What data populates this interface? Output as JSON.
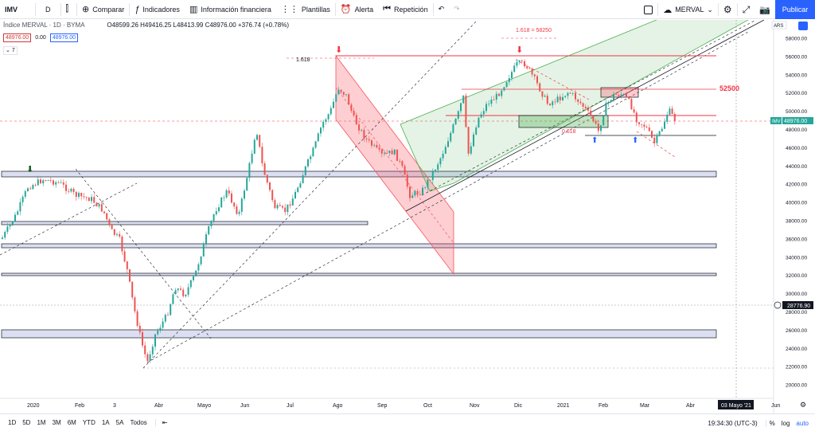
{
  "toolbar": {
    "symbol": "IMV",
    "interval": "D",
    "compare": "Comparar",
    "indicators": "Indicadores",
    "financials": "Información financiera",
    "templates": "Plantillas",
    "alert": "Alerta",
    "replay": "Repetición",
    "layout_name": "MERVAL",
    "publish": "Publicar"
  },
  "legend": {
    "name": "Índice MERVAL · 1D · BYMA",
    "ohlc": "O48599.26 H49416.25 L48413.99 C48976.00 +376.74 (+0.78%)",
    "bid": "48976.00",
    "spread": "0.00",
    "ask": "48976.00",
    "indicators_count": "7"
  },
  "price_axis": {
    "currency": "ARS",
    "labels": [
      "58000.00",
      "56000.00",
      "54000.00",
      "52000.00",
      "50000.00",
      "48000.00",
      "46000.00",
      "44000.00",
      "42000.00",
      "40000.00",
      "38000.00",
      "36000.00",
      "34000.00",
      "32000.00",
      "30000.00",
      "28000.00",
      "26000.00",
      "24000.00",
      "22000.00",
      "20000.00"
    ],
    "last_symbol": "IMV",
    "last_price": "48976.00",
    "crosshair_price": "28776.90"
  },
  "time_axis": {
    "labels": [
      "2020",
      "Feb",
      "3",
      "Abr",
      "Mayo",
      "Jun",
      "Jul",
      "Ago",
      "Sep",
      "Oct",
      "Nov",
      "Dic",
      "2021",
      "Feb",
      "Mar",
      "Abr",
      "Jun"
    ],
    "crosshair_date": "03 Mayo '21"
  },
  "annotations": {
    "fib_top": "1.618 = 58250",
    "fib_left": "1.618",
    "fib_mid": "0.618",
    "level_52500": "52500"
  },
  "colors": {
    "up": "#26a69a",
    "down": "#ef5350",
    "accent": "#2962ff",
    "red_line": "#f23645",
    "green_channel": "#4caf50",
    "red_channel": "#f7525f"
  },
  "bottom": {
    "ranges": [
      "1D",
      "5D",
      "1M",
      "3M",
      "6M",
      "YTD",
      "1A",
      "5A",
      "Todos"
    ],
    "clock": "19:34:30 (UTC-3)",
    "percent": "%",
    "log": "log",
    "auto": "auto"
  }
}
